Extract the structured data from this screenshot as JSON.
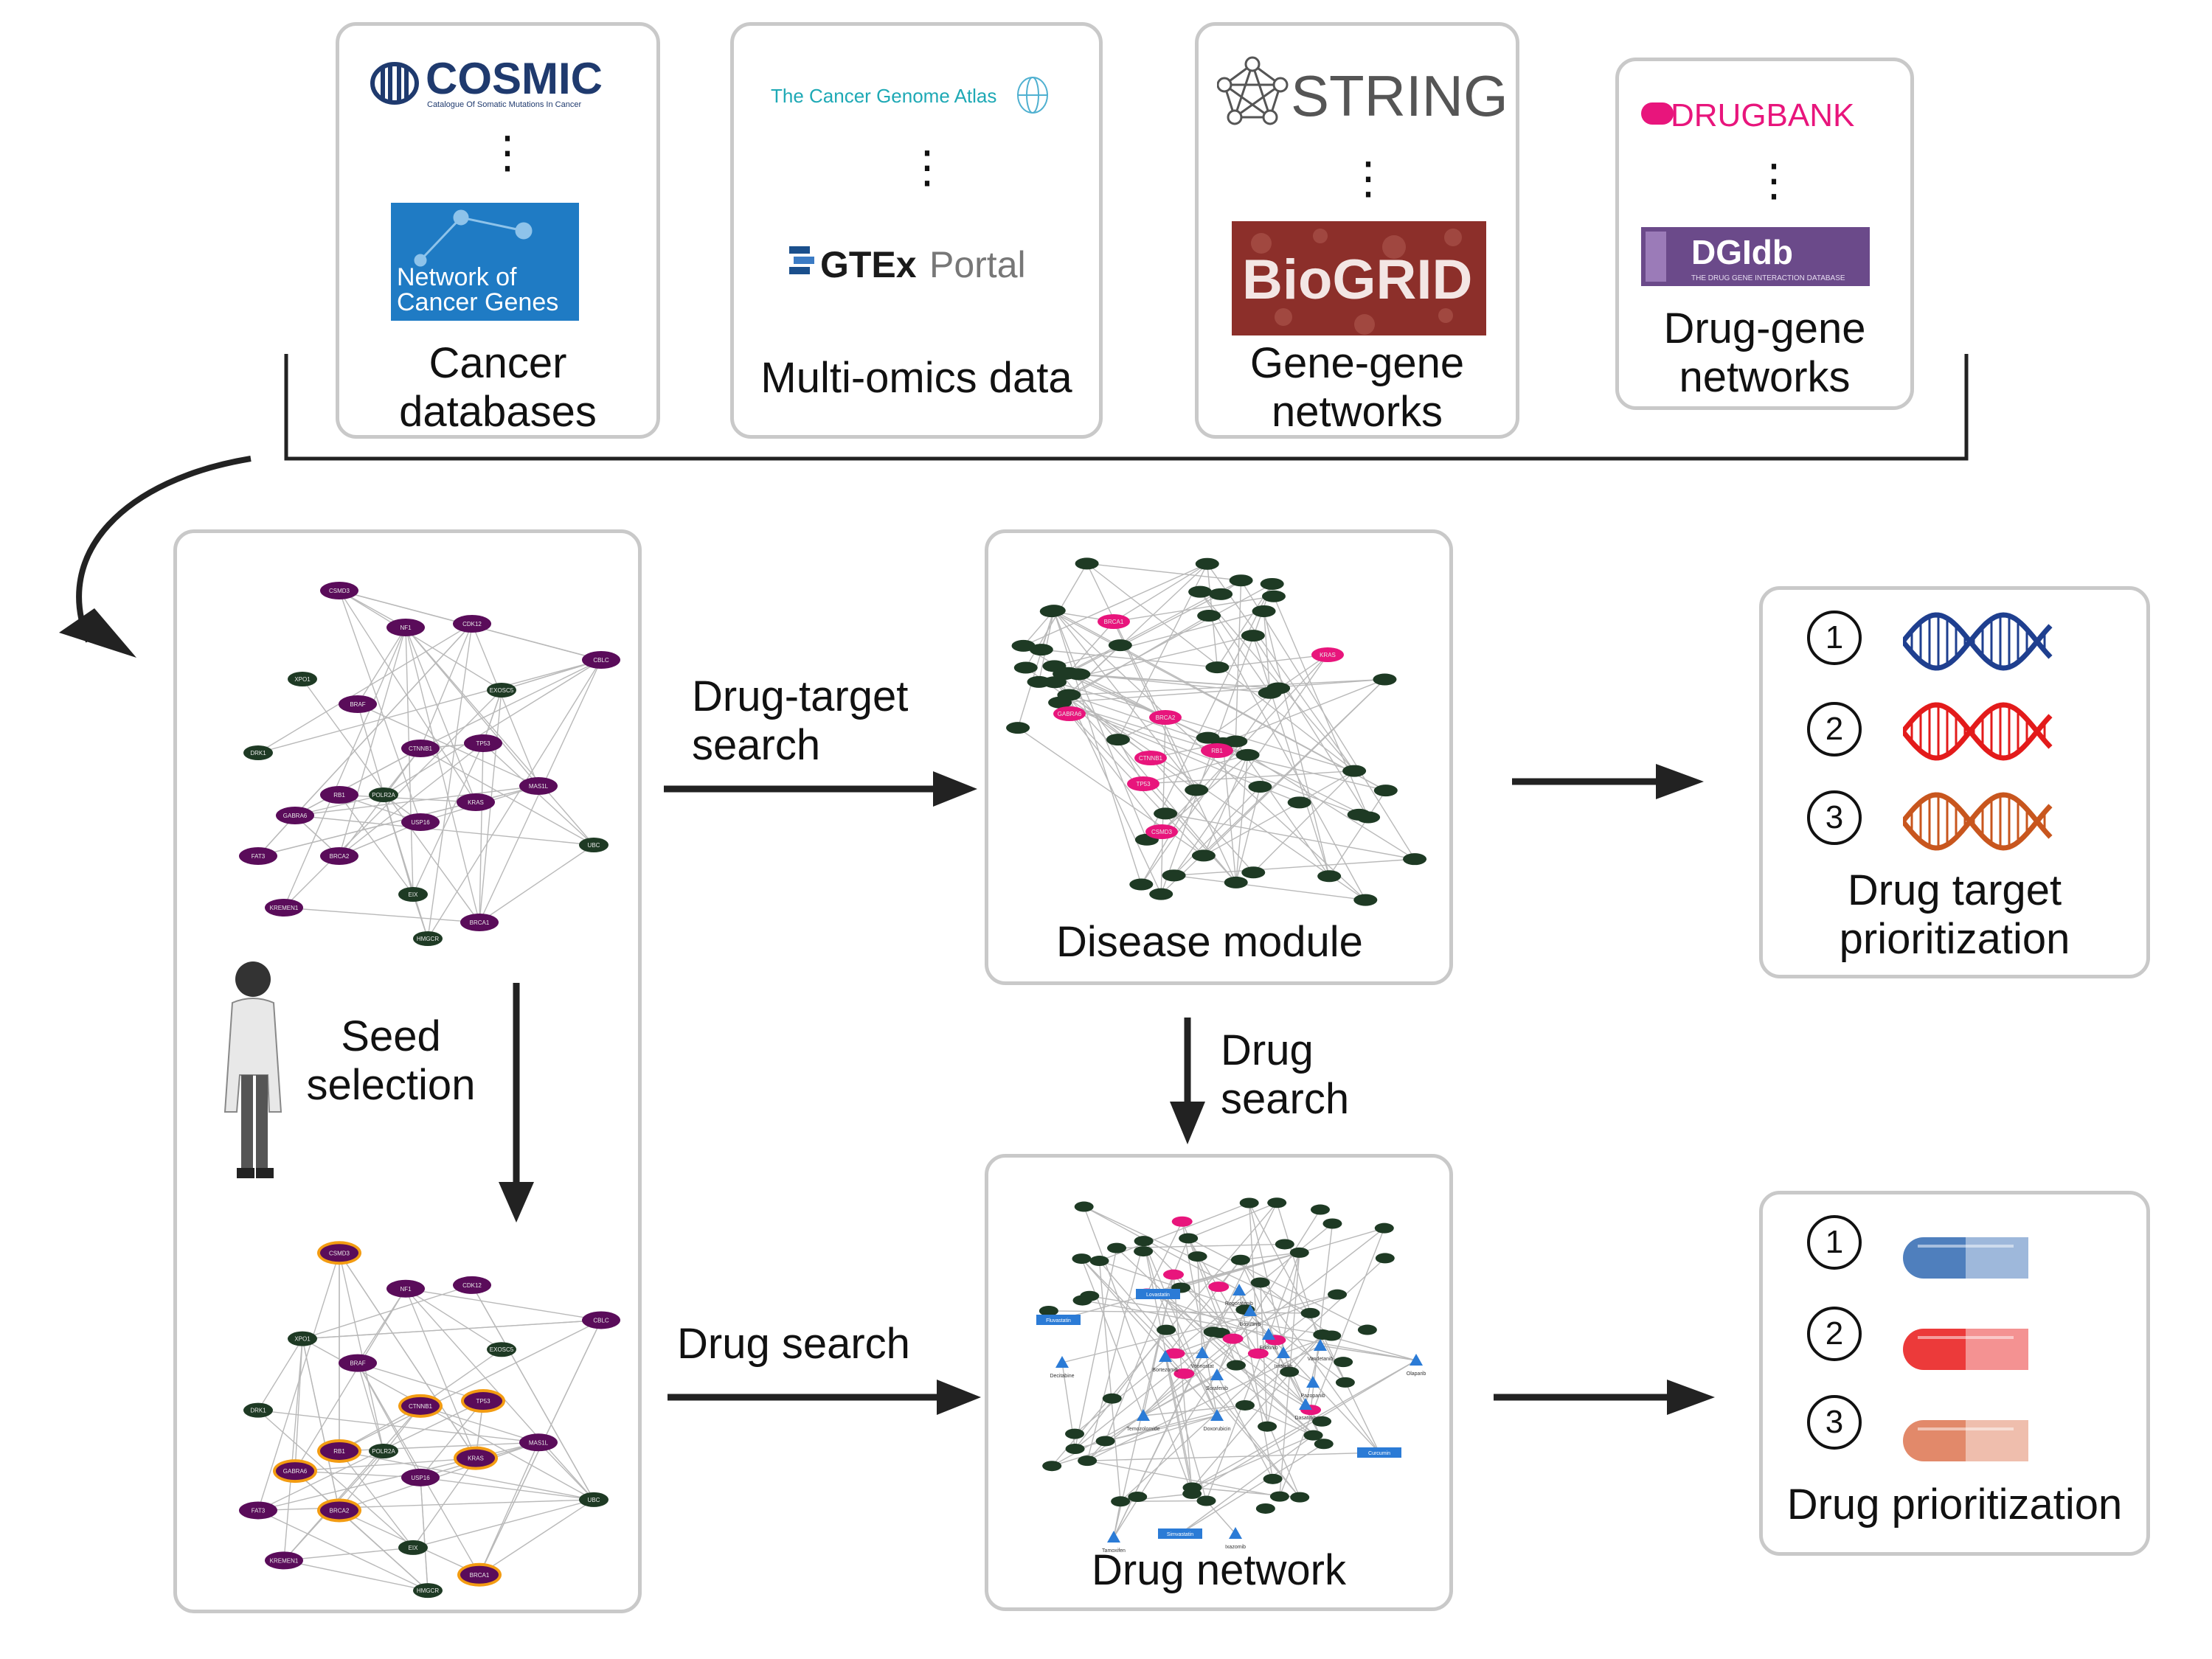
{
  "sources": [
    {
      "caption": "Cancer\ndatabases",
      "logos": [
        "COSMIC",
        "Catalogue Of Somatic Mutations In Cancer",
        "Network of",
        "Cancer Genes"
      ]
    },
    {
      "caption": "Multi-omics data",
      "logos": [
        "The Cancer Genome Atlas",
        "GTEx",
        "Portal"
      ]
    },
    {
      "caption": "Gene-gene\nnetworks",
      "logos": [
        "STRING",
        "BioGRID"
      ]
    },
    {
      "caption": "Drug-gene\nnetworks",
      "logos": [
        "DRUGBANK",
        "DGIdb",
        "THE DRUG GENE INTERACTION DATABASE"
      ]
    }
  ],
  "steps": {
    "seed_selection": "Seed\nselection",
    "drug_target_search": "Drug-target\nsearch",
    "drug_search_vertical": "Drug\nsearch",
    "drug_search_horizontal": "Drug search",
    "disease_module": "Disease module",
    "drug_network": "Drug network",
    "drug_target_prioritization": "Drug target\nprioritization",
    "drug_prioritization": "Drug prioritization"
  },
  "ranks": [
    "1",
    "2",
    "3"
  ],
  "colors": {
    "seed_node": "#5a0c5a",
    "seed_highlight": "#f39c12",
    "gene_node": "#1e3a24",
    "module_node": "#e8157c",
    "drug_node": "#2b7bd6",
    "dna_1": "#1f3f8f",
    "dna_2": "#e31b1b",
    "dna_3": "#c8561e",
    "pill_1": "#4f7fbd",
    "pill_2": "#ec3a3a",
    "pill_3": "#e2896a"
  },
  "network_labels": {
    "seed_nodes": [
      "CSMD3",
      "NF1",
      "CDK12",
      "CBLC",
      "BRAF",
      "CTNNB1",
      "TP53",
      "RB1",
      "KRAS",
      "MAS1L",
      "GABRA6",
      "BRCA2",
      "USP16",
      "FAT3",
      "KREMEN1",
      "BRCA1"
    ],
    "gene_nodes": [
      "XPO1",
      "EXOSC5",
      "DRK1",
      "POLR2A",
      "UBC",
      "EIX",
      "HMGCR"
    ],
    "module_pink": [
      "BRCA1",
      "GABRA6",
      "CTNNB1",
      "BRCA2",
      "TP53",
      "RB1",
      "CSMD3",
      "KRAS"
    ],
    "drugs": [
      "Lovastatin",
      "Fluvastatin",
      "Regorafenib",
      "Bosutinib",
      "Erlotinib",
      "Temozolomide",
      "Vorinostat",
      "Sorafenib",
      "Imatinib",
      "Dasatinib",
      "Vandetanib",
      "Olaparib",
      "Decitabine",
      "Bortezomib",
      "Doxorubicin",
      "Pazopanib",
      "Curcumin",
      "Tamoxifen",
      "Simvastatin",
      "Ixazomib"
    ]
  }
}
